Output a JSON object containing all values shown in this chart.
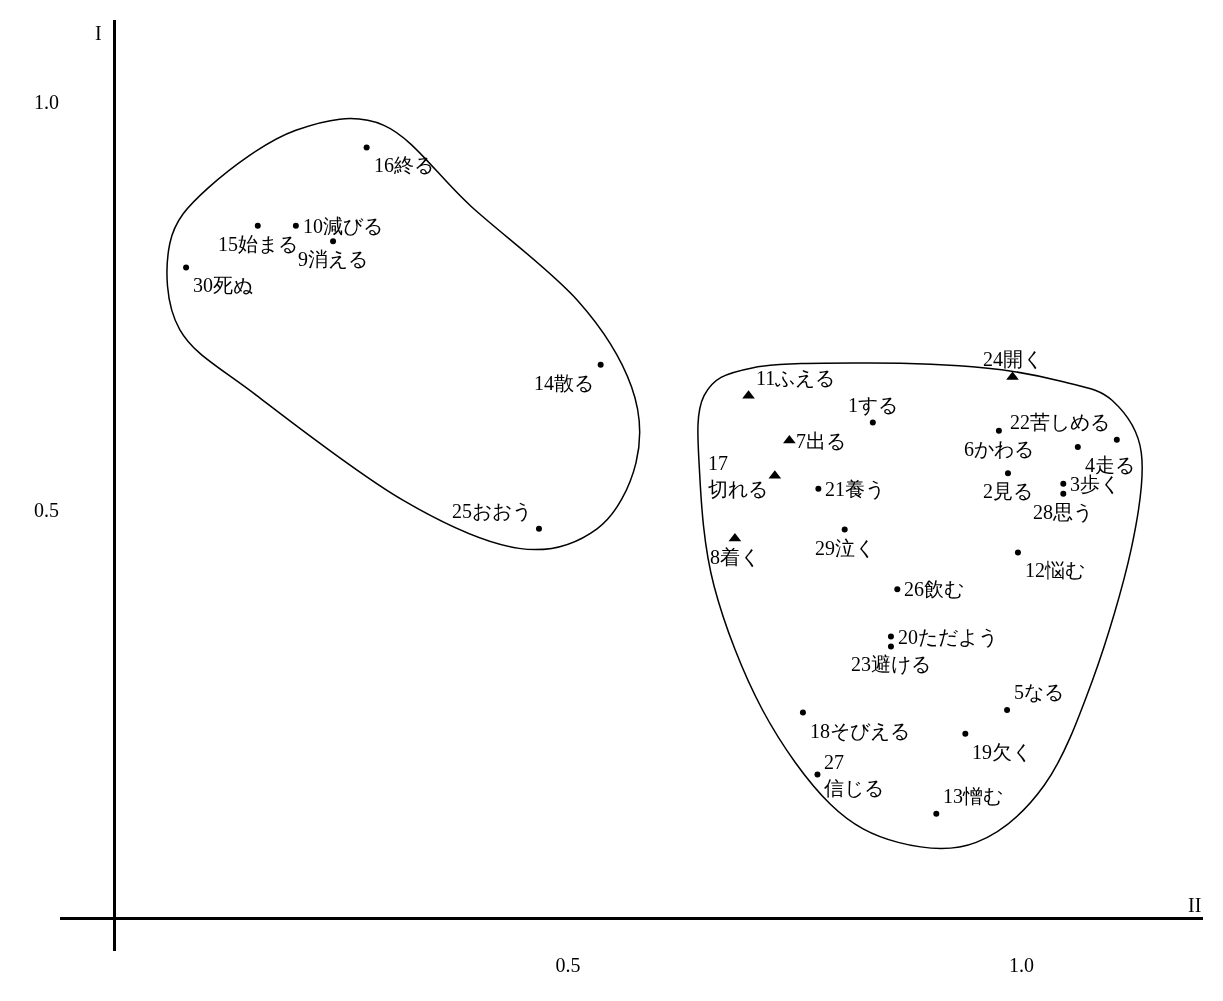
{
  "chart_data": {
    "type": "scatter",
    "xlabel": "II",
    "ylabel": "I",
    "xlim": [
      -0.06,
      1.2
    ],
    "ylim": [
      -0.04,
      1.1
    ],
    "xticks": [
      {
        "value": 0.5,
        "label": "0.5"
      },
      {
        "value": 1.0,
        "label": "1.0"
      }
    ],
    "yticks": [
      {
        "value": 0.5,
        "label": "0.5"
      },
      {
        "value": 1.0,
        "label": "1.0"
      }
    ],
    "grid": false,
    "series": [
      {
        "color": "#000000",
        "marker": "circle",
        "x": [
          0.278,
          0.2,
          0.158,
          0.241,
          0.079,
          0.536,
          0.468,
          0.836,
          0.975,
          0.985,
          1.105,
          1.062,
          1.046,
          1.046,
          0.776,
          0.805,
          0.996,
          0.863,
          0.856,
          0.856,
          0.984,
          0.759,
          0.938,
          0.775,
          0.906
        ],
        "values": [
          0.944,
          0.848,
          0.848,
          0.829,
          0.797,
          0.678,
          0.477,
          0.607,
          0.597,
          0.545,
          0.586,
          0.577,
          0.532,
          0.52,
          0.526,
          0.476,
          0.448,
          0.403,
          0.345,
          0.333,
          0.255,
          0.252,
          0.226,
          0.176,
          0.128
        ]
      },
      {
        "color": "#000000",
        "marker": "triangle",
        "x": [
          0.699,
          0.744,
          0.728,
          0.684,
          0.99
        ],
        "values": [
          0.64,
          0.585,
          0.542,
          0.465,
          0.663
        ]
      }
    ],
    "annotations": [
      {
        "text": "16終る",
        "x": 0.278,
        "y": 0.944
      },
      {
        "text": "10減びる",
        "x": 0.2,
        "y": 0.848
      },
      {
        "text": "15始まる",
        "x": 0.158,
        "y": 0.848
      },
      {
        "text": "9消える",
        "x": 0.241,
        "y": 0.829
      },
      {
        "text": "30死ぬ",
        "x": 0.079,
        "y": 0.797
      },
      {
        "text": "14散る",
        "x": 0.536,
        "y": 0.678
      },
      {
        "text": "25おおう",
        "x": 0.468,
        "y": 0.477
      },
      {
        "text": "1する",
        "x": 0.836,
        "y": 0.607
      },
      {
        "text": "6かわる",
        "x": 0.975,
        "y": 0.597
      },
      {
        "text": "2見る",
        "x": 0.985,
        "y": 0.545
      },
      {
        "text": "22苦しめる",
        "x": 1.105,
        "y": 0.586
      },
      {
        "text": "4走る",
        "x": 1.062,
        "y": 0.577
      },
      {
        "text": "3歩く",
        "x": 1.046,
        "y": 0.532
      },
      {
        "text": "28思う",
        "x": 1.046,
        "y": 0.52
      },
      {
        "text": "21養う",
        "x": 0.776,
        "y": 0.526
      },
      {
        "text": "29泣く",
        "x": 0.805,
        "y": 0.476
      },
      {
        "text": "12悩む",
        "x": 0.996,
        "y": 0.448
      },
      {
        "text": "26飲む",
        "x": 0.863,
        "y": 0.403
      },
      {
        "text": "20ただよう",
        "x": 0.856,
        "y": 0.345
      },
      {
        "text": "23避ける",
        "x": 0.856,
        "y": 0.333
      },
      {
        "text": "5なる",
        "x": 0.984,
        "y": 0.255
      },
      {
        "text": "18そびえる",
        "x": 0.759,
        "y": 0.252
      },
      {
        "text": "19欠く",
        "x": 0.938,
        "y": 0.226
      },
      {
        "text": "27\n信じる",
        "x": 0.775,
        "y": 0.176
      },
      {
        "text": "13憎む",
        "x": 0.906,
        "y": 0.128
      },
      {
        "text": "11ふえる",
        "x": 0.699,
        "y": 0.64
      },
      {
        "text": "7出る",
        "x": 0.744,
        "y": 0.585
      },
      {
        "text": "17\n切れる",
        "x": 0.728,
        "y": 0.542
      },
      {
        "text": "8着く",
        "x": 0.684,
        "y": 0.465
      },
      {
        "text": "24開く",
        "x": 0.99,
        "y": 0.663
      }
    ]
  }
}
